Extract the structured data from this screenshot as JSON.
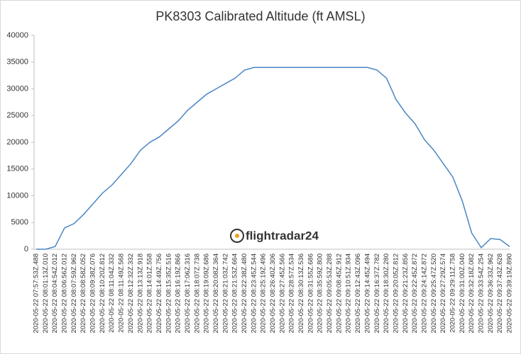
{
  "chart_data": {
    "type": "line",
    "title": "PK8303 Calibrated Altitude (ft AMSL)",
    "watermark": "flightradar24",
    "color": "#4a86c5",
    "grid": false,
    "ylim": [
      0,
      40000
    ],
    "yticks": [
      0,
      5000,
      10000,
      15000,
      20000,
      25000,
      30000,
      35000,
      40000
    ],
    "categories": [
      "2020-05-22 07:57:53Z.488",
      "2020-05-22 08:01:13Z.010",
      "2020-05-22 08:04:54Z.012",
      "2020-05-22 08:06:56Z.012",
      "2020-05-22 08:07:59Z.962",
      "2020-05-22 08:08:58Z.052",
      "2020-05-22 08:09:38Z.076",
      "2020-05-22 08:10:20Z.812",
      "2020-05-22 08:11:04Z.332",
      "2020-05-22 08:11:49Z.568",
      "2020-05-22 08:12:32Z.332",
      "2020-05-22 08:13:13Z.918",
      "2020-05-22 08:14:01Z.558",
      "2020-05-22 08:14:49Z.756",
      "2020-05-22 08:15:35Z.516",
      "2020-05-22 08:16:19Z.866",
      "2020-05-22 08:17:06Z.316",
      "2020-05-22 08:18:07Z.738",
      "2020-05-22 08:19:09Z.686",
      "2020-05-22 08:20:08Z.364",
      "2020-05-22 08:21:03Z.742",
      "2020-05-22 08:21:53Z.664",
      "2020-05-22 08:22:38Z.480",
      "2020-05-22 08:23:45Z.544",
      "2020-05-22 08:25:19Z.496",
      "2020-05-22 08:26:40Z.306",
      "2020-05-22 08:27:45Z.566",
      "2020-05-22 08:28:57Z.534",
      "2020-05-22 08:30:13Z.536",
      "2020-05-22 08:31:55Z.686",
      "2020-05-22 08:35:59Z.800",
      "2020-05-22 09:05:53Z.288",
      "2020-05-22 09:08:45Z.912",
      "2020-05-22 09:10:51Z.934",
      "2020-05-22 09:12:43Z.096",
      "2020-05-22 09:14:45Z.494",
      "2020-05-22 09:16:37Z.782",
      "2020-05-22 09:18:30Z.280",
      "2020-05-22 09:20:05Z.812",
      "2020-05-22 09:21:23Z.856",
      "2020-05-22 09:22:45Z.872",
      "2020-05-22 09:24:14Z.872",
      "2020-05-22 09:25:47Z.520",
      "2020-05-22 09:27:29Z.574",
      "2020-05-22 09:29:11Z.758",
      "2020-05-22 09:31:00Z.040",
      "2020-05-22 09:32:18Z.082",
      "2020-05-22 09:33:54Z.254",
      "2020-05-22 09:36:33Z.962",
      "2020-05-22 09:37:43Z.628",
      "2020-05-22 09:39:19Z.890"
    ],
    "values": [
      0,
      0,
      500,
      4000,
      4800,
      6500,
      8500,
      10500,
      12000,
      14000,
      16000,
      18500,
      20000,
      21000,
      22500,
      24000,
      26000,
      27500,
      29000,
      30000,
      31000,
      32000,
      33500,
      34000,
      34000,
      34000,
      34000,
      34000,
      34000,
      34000,
      34000,
      34000,
      34000,
      34000,
      34000,
      34000,
      33500,
      32000,
      28000,
      25500,
      23500,
      20500,
      18500,
      16000,
      13500,
      9000,
      3000,
      300,
      2000,
      1800,
      500
    ]
  }
}
